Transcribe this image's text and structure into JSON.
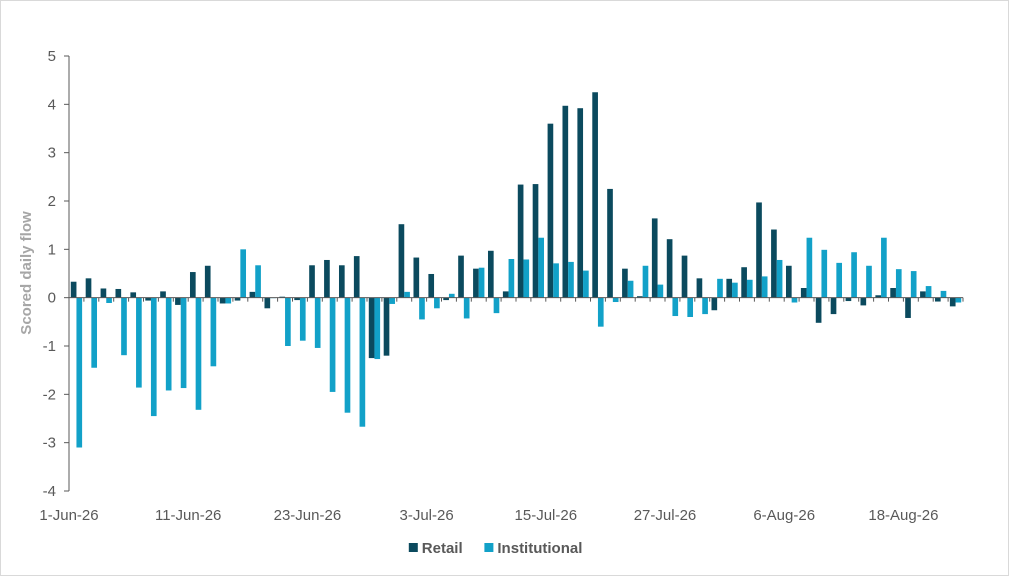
{
  "chart_data": {
    "type": "bar",
    "title": "",
    "xlabel": "",
    "ylabel": "Scored daily flow",
    "ylim": [
      -4,
      5
    ],
    "yticks": [
      -4,
      -3,
      -2,
      -1,
      0,
      1,
      2,
      3,
      4,
      5
    ],
    "x_tick_labels": [
      "1-Jun-26",
      "11-Jun-26",
      "23-Jun-26",
      "3-Jul-26",
      "15-Jul-26",
      "27-Jul-26",
      "6-Aug-26",
      "18-Aug-26"
    ],
    "x_tick_indices": [
      0,
      8,
      16,
      24,
      32,
      40,
      48,
      56
    ],
    "grid": false,
    "legend_position": "bottom",
    "categories": [
      "1-Jun-26",
      "2-Jun-26",
      "3-Jun-26",
      "4-Jun-26",
      "5-Jun-26",
      "8-Jun-26",
      "9-Jun-26",
      "10-Jun-26",
      "11-Jun-26",
      "12-Jun-26",
      "15-Jun-26",
      "16-Jun-26",
      "17-Jun-26",
      "18-Jun-26",
      "19-Jun-26",
      "22-Jun-26",
      "23-Jun-26",
      "24-Jun-26",
      "25-Jun-26",
      "26-Jun-26",
      "29-Jun-26",
      "30-Jun-26",
      "1-Jul-26",
      "2-Jul-26",
      "3-Jul-26",
      "6-Jul-26",
      "7-Jul-26",
      "8-Jul-26",
      "9-Jul-26",
      "10-Jul-26",
      "13-Jul-26",
      "14-Jul-26",
      "15-Jul-26",
      "16-Jul-26",
      "17-Jul-26",
      "20-Jul-26",
      "21-Jul-26",
      "22-Jul-26",
      "23-Jul-26",
      "24-Jul-26",
      "27-Jul-26",
      "28-Jul-26",
      "29-Jul-26",
      "30-Jul-26",
      "31-Jul-26",
      "3-Aug-26",
      "4-Aug-26",
      "5-Aug-26",
      "6-Aug-26",
      "7-Aug-26",
      "10-Aug-26",
      "11-Aug-26",
      "12-Aug-26",
      "13-Aug-26",
      "14-Aug-26",
      "17-Aug-26",
      "18-Aug-26",
      "19-Aug-26",
      "20-Aug-26",
      "21-Aug-26"
    ],
    "series": [
      {
        "name": "Retail",
        "color": "#0b4a5e",
        "values": [
          0.33,
          0.4,
          0.19,
          0.18,
          0.11,
          -0.06,
          0.13,
          -0.15,
          0.53,
          0.66,
          -0.12,
          -0.06,
          0.12,
          -0.22,
          0.02,
          -0.05,
          0.67,
          0.78,
          0.67,
          0.86,
          -1.25,
          -1.2,
          1.52,
          0.83,
          0.49,
          -0.05,
          0.87,
          0.6,
          0.97,
          0.13,
          2.34,
          2.35,
          3.6,
          3.97,
          3.92,
          4.25,
          2.25,
          0.6,
          0.03,
          1.64,
          1.21,
          0.87,
          0.4,
          -0.26,
          0.39,
          0.63,
          1.97,
          1.41,
          0.66,
          0.2,
          -0.52,
          -0.34,
          -0.07,
          -0.16,
          0.05,
          0.2,
          -0.42,
          0.13,
          -0.08,
          -0.18
        ]
      },
      {
        "name": "Institutional",
        "color": "#12a1c8",
        "values": [
          -3.1,
          -1.45,
          -0.11,
          -1.19,
          -1.86,
          -2.45,
          -1.92,
          -1.87,
          -2.32,
          -1.42,
          -0.12,
          1.0,
          0.67,
          -0.01,
          -1.0,
          -0.89,
          -1.04,
          -1.95,
          -2.38,
          -2.67,
          -1.27,
          -0.13,
          0.12,
          -0.45,
          -0.22,
          0.08,
          -0.43,
          0.62,
          -0.32,
          0.8,
          0.79,
          1.24,
          0.71,
          0.74,
          0.56,
          -0.6,
          -0.09,
          0.35,
          0.66,
          0.27,
          -0.38,
          -0.4,
          -0.34,
          0.39,
          0.31,
          0.37,
          0.44,
          0.78,
          -0.1,
          1.24,
          0.99,
          0.72,
          0.94,
          0.66,
          1.24,
          0.59,
          0.55,
          0.24,
          0.14,
          -0.1
        ]
      }
    ]
  }
}
